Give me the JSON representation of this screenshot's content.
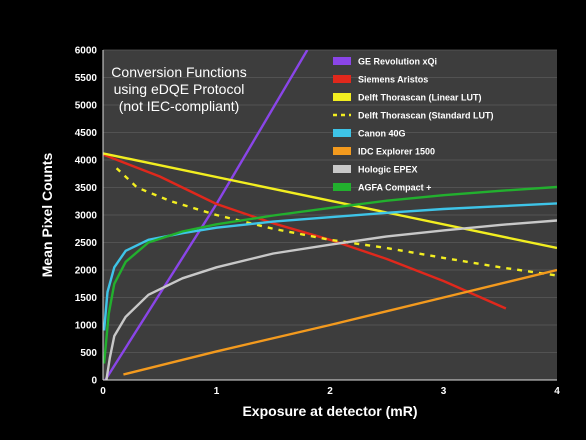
{
  "chart_data": {
    "type": "line",
    "title": "",
    "xlabel": "Exposure at detector  (mR)",
    "ylabel": "Mean Pixel Counts",
    "xlim": [
      0,
      4
    ],
    "ylim": [
      0,
      6000
    ],
    "x_ticks": [
      "0",
      "1",
      "2",
      "3",
      "4"
    ],
    "y_ticks": [
      "0",
      "500",
      "1000",
      "1500",
      "2000",
      "2500",
      "3000",
      "3500",
      "4000",
      "4500",
      "5000",
      "5500",
      "6000"
    ],
    "grid": true,
    "legend_position": "top-right",
    "annotation": [
      "Conversion Functions",
      "using eDQE Protocol",
      "(not IEC-compliant)"
    ],
    "series": [
      {
        "name": "GE Revolution xQi",
        "color": "#8a45e8",
        "dash": false,
        "points": [
          [
            0.02,
            0
          ],
          [
            1.0,
            3200
          ],
          [
            1.8,
            6000
          ]
        ]
      },
      {
        "name": "Siemens Aristos",
        "color": "#e0281c",
        "dash": false,
        "points": [
          [
            0.0,
            4100
          ],
          [
            0.5,
            3700
          ],
          [
            1.0,
            3200
          ],
          [
            1.5,
            2850
          ],
          [
            2.0,
            2550
          ],
          [
            2.5,
            2200
          ],
          [
            3.0,
            1800
          ],
          [
            3.55,
            1300
          ]
        ]
      },
      {
        "name": "Delft Thorascan (Linear LUT)",
        "color": "#f2ee20",
        "dash": false,
        "points": [
          [
            0.0,
            4120
          ],
          [
            4.0,
            2400
          ]
        ]
      },
      {
        "name": "Delft Thorascan (Standard LUT)",
        "color": "#f2ee20",
        "dash": true,
        "points": [
          [
            0.12,
            3850
          ],
          [
            0.3,
            3500
          ],
          [
            0.6,
            3250
          ],
          [
            1.0,
            3000
          ],
          [
            1.5,
            2750
          ],
          [
            2.0,
            2550
          ],
          [
            2.5,
            2400
          ],
          [
            3.0,
            2220
          ],
          [
            3.5,
            2050
          ],
          [
            4.0,
            1900
          ]
        ]
      },
      {
        "name": "Canon 40G",
        "color": "#3ec4e8",
        "dash": false,
        "points": [
          [
            0.01,
            900
          ],
          [
            0.04,
            1600
          ],
          [
            0.1,
            2050
          ],
          [
            0.2,
            2350
          ],
          [
            0.4,
            2550
          ],
          [
            0.7,
            2670
          ],
          [
            1.0,
            2770
          ],
          [
            1.5,
            2880
          ],
          [
            2.0,
            2960
          ],
          [
            2.5,
            3040
          ],
          [
            3.0,
            3110
          ],
          [
            3.5,
            3160
          ],
          [
            4.0,
            3210
          ]
        ]
      },
      {
        "name": "IDC Explorer 1500",
        "color": "#f39a1e",
        "dash": false,
        "points": [
          [
            0.18,
            100
          ],
          [
            1.0,
            520
          ],
          [
            2.0,
            1000
          ],
          [
            3.0,
            1500
          ],
          [
            4.0,
            2000
          ]
        ]
      },
      {
        "name": "Hologic EPEX",
        "color": "#c8c8c8",
        "dash": false,
        "points": [
          [
            0.03,
            0
          ],
          [
            0.06,
            400
          ],
          [
            0.1,
            800
          ],
          [
            0.2,
            1150
          ],
          [
            0.4,
            1550
          ],
          [
            0.7,
            1850
          ],
          [
            1.0,
            2050
          ],
          [
            1.5,
            2300
          ],
          [
            2.0,
            2460
          ],
          [
            2.5,
            2610
          ],
          [
            3.0,
            2720
          ],
          [
            3.5,
            2820
          ],
          [
            4.0,
            2900
          ]
        ]
      },
      {
        "name": "AGFA Compact +",
        "color": "#22b02e",
        "dash": false,
        "points": [
          [
            0.01,
            300
          ],
          [
            0.05,
            1200
          ],
          [
            0.1,
            1750
          ],
          [
            0.2,
            2150
          ],
          [
            0.4,
            2500
          ],
          [
            0.7,
            2700
          ],
          [
            1.0,
            2830
          ],
          [
            1.5,
            2990
          ],
          [
            2.0,
            3130
          ],
          [
            2.5,
            3260
          ],
          [
            3.0,
            3360
          ],
          [
            3.5,
            3440
          ],
          [
            4.0,
            3510
          ]
        ]
      }
    ]
  }
}
